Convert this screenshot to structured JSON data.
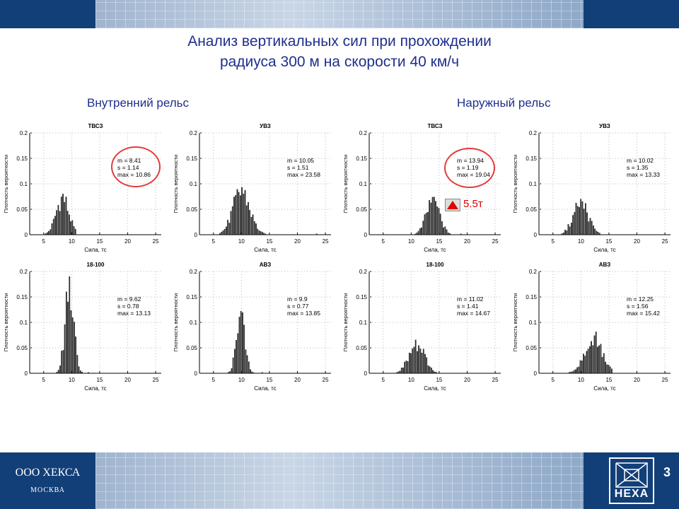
{
  "header": {
    "title_line1": "Анализ вертикальных сил при прохождении",
    "title_line2": "радиуса 300 м на скорости 40 км/ч"
  },
  "sections": {
    "inner": "Внутренний рельс",
    "outer": "Наружный рельс"
  },
  "footer": {
    "company": "ООО ХЕКСА",
    "city": "МОСКВА",
    "logo_text": "HEXA",
    "page_number": "3"
  },
  "callout": {
    "label": "5.5т",
    "color": "#e00000"
  },
  "highlight_color": "#e53a3a",
  "chart_data": [
    {
      "type": "bar",
      "title": "ТВСЗ",
      "xlabel": "Сила, тс",
      "ylabel": "Плотность вероятности",
      "xlim": [
        2.5,
        26
      ],
      "ylim": [
        0,
        0.2
      ],
      "xticks": [
        5,
        10,
        15,
        20,
        25
      ],
      "yticks": [
        0,
        0.05,
        0.1,
        0.15,
        0.2
      ],
      "stats": [
        "m = 8.41",
        "s  = 1.14",
        "max  = 10.86"
      ],
      "mean": 8.41,
      "std": 1.14,
      "max": 10.86,
      "peak": 0.08
    },
    {
      "type": "bar",
      "title": "УВЗ",
      "xlabel": "Сила, тс",
      "ylabel": "Плотность вероятности",
      "xlim": [
        2.5,
        26
      ],
      "ylim": [
        0,
        0.2
      ],
      "xticks": [
        5,
        10,
        15,
        20,
        25
      ],
      "yticks": [
        0,
        0.05,
        0.1,
        0.15,
        0.2
      ],
      "stats": [
        "m = 10.05",
        "s  = 1.51",
        "max  = 23.58"
      ],
      "mean": 10.05,
      "std": 1.51,
      "max": 23.58,
      "peak": 0.093
    },
    {
      "type": "bar",
      "title": "ТВСЗ",
      "xlabel": "Сила, тс",
      "ylabel": "Плотность вероятности",
      "xlim": [
        2.5,
        26
      ],
      "ylim": [
        0,
        0.2
      ],
      "xticks": [
        5,
        10,
        15,
        20,
        25
      ],
      "yticks": [
        0,
        0.05,
        0.1,
        0.15,
        0.2
      ],
      "stats": [
        "m = 13.94",
        "s  = 1.19",
        "max  = 19.04"
      ],
      "mean": 13.94,
      "std": 1.19,
      "max": 19.04,
      "peak": 0.074
    },
    {
      "type": "bar",
      "title": "УВЗ",
      "xlabel": "Сила, тс",
      "ylabel": "Плотность вероятности",
      "xlim": [
        2.5,
        26
      ],
      "ylim": [
        0,
        0.2
      ],
      "xticks": [
        5,
        10,
        15,
        20,
        25
      ],
      "yticks": [
        0,
        0.05,
        0.1,
        0.15,
        0.2
      ],
      "stats": [
        "m = 10.02",
        "s  = 1.35",
        "max  = 13.33"
      ],
      "mean": 10.02,
      "std": 1.35,
      "max": 13.33,
      "peak": 0.07
    },
    {
      "type": "bar",
      "title": "18-100",
      "xlabel": "Сила, тс",
      "ylabel": "Плотность вероятности",
      "xlim": [
        2.5,
        26
      ],
      "ylim": [
        0,
        0.2
      ],
      "xticks": [
        5,
        10,
        15,
        20,
        25
      ],
      "yticks": [
        0,
        0.05,
        0.1,
        0.15,
        0.2
      ],
      "stats": [
        "m = 9.62",
        "s  = 0.78",
        "max  = 13.13"
      ],
      "mean": 9.62,
      "std": 0.78,
      "max": 13.13,
      "peak": 0.19
    },
    {
      "type": "bar",
      "title": "АВЗ",
      "xlabel": "Сила, тс",
      "ylabel": "Плотность вероятности",
      "xlim": [
        2.5,
        26
      ],
      "ylim": [
        0,
        0.2
      ],
      "xticks": [
        5,
        10,
        15,
        20,
        25
      ],
      "yticks": [
        0,
        0.05,
        0.1,
        0.15,
        0.2
      ],
      "stats": [
        "m = 9.9",
        "s  = 0.77",
        "max  = 13.85"
      ],
      "mean": 9.9,
      "std": 0.77,
      "max": 13.85,
      "peak": 0.122
    },
    {
      "type": "bar",
      "title": "18-100",
      "xlabel": "Сила, тс",
      "ylabel": "Плотность вероятности",
      "xlim": [
        2.5,
        26
      ],
      "ylim": [
        0,
        0.2
      ],
      "xticks": [
        5,
        10,
        15,
        20,
        25
      ],
      "yticks": [
        0,
        0.05,
        0.1,
        0.15,
        0.2
      ],
      "stats": [
        "m = 11.02",
        "s  = 1.41",
        "max  = 14.67"
      ],
      "mean": 11.02,
      "std": 1.41,
      "max": 14.67,
      "peak": 0.06
    },
    {
      "type": "bar",
      "title": "АВЗ",
      "xlabel": "Сила, тс",
      "ylabel": "Плотность вероятности",
      "xlim": [
        2.5,
        26
      ],
      "ylim": [
        0,
        0.2
      ],
      "xticks": [
        5,
        10,
        15,
        20,
        25
      ],
      "yticks": [
        0,
        0.05,
        0.1,
        0.15,
        0.2
      ],
      "stats": [
        "m = 12.25",
        "s  = 1.56",
        "max  = 15.42"
      ],
      "mean": 12.25,
      "std": 1.56,
      "max": 15.42,
      "peak": 0.074
    }
  ]
}
